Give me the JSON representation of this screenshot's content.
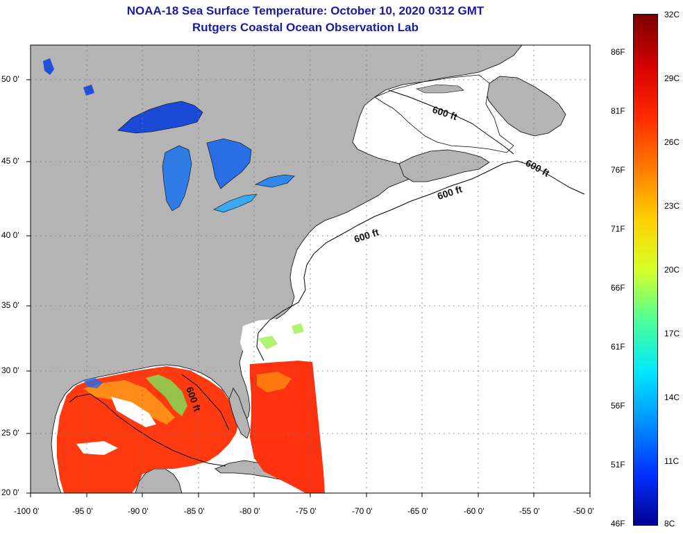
{
  "header": {
    "title": "NOAA-18 Sea Surface Temperature:  October 10, 2020 0312 GMT",
    "subtitle": "Rutgers Coastal Ocean Observation Lab"
  },
  "map": {
    "lat_labels": [
      "50 0'",
      "45 0'",
      "40 0'",
      "35 0'",
      "30 0'",
      "25 0'",
      "20 0'"
    ],
    "lon_labels": [
      "-100 0'",
      "-95 0'",
      "-90 0'",
      "-85 0'",
      "-80 0'",
      "-75 0'",
      "-70 0'",
      "-65 0'",
      "-60 0'",
      "-55 0'",
      "-50 0'"
    ],
    "contour_labels": [
      "600 ft",
      "600 ft",
      "600 ft",
      "600 ft",
      "600 ft"
    ],
    "land_color": "#b4b4b4",
    "ocean_nodata_color": "#ffffff"
  },
  "colorbar": {
    "celsius_labels": [
      "32C",
      "29C",
      "26C",
      "23C",
      "20C",
      "17C",
      "14C",
      "11C",
      "8C"
    ],
    "fahrenheit_labels": [
      "86F",
      "81F",
      "76F",
      "71F",
      "66F",
      "61F",
      "56F",
      "51F",
      "46F"
    ],
    "colors": [
      "#7a0000",
      "#d40000",
      "#ff2a00",
      "#ff7a00",
      "#ffd000",
      "#d8ff28",
      "#4cff9a",
      "#00e8ff",
      "#0090ff",
      "#0030ff",
      "#000090"
    ]
  }
}
